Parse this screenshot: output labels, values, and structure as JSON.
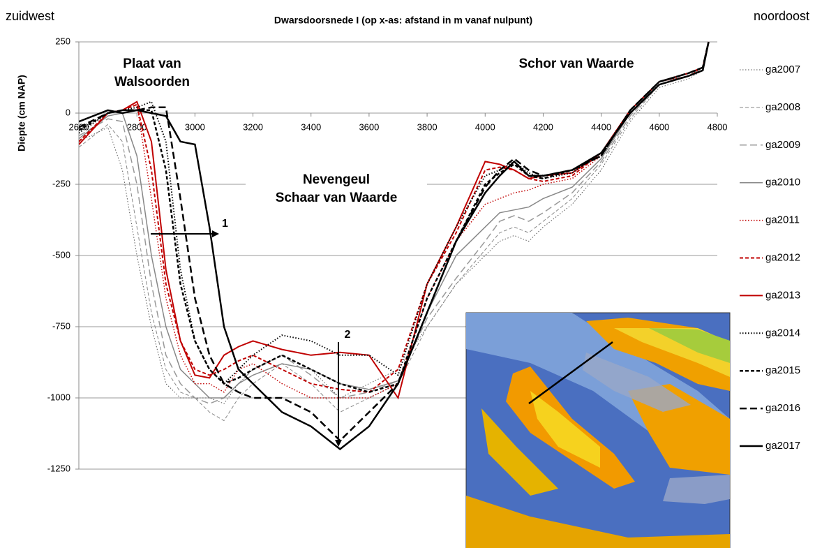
{
  "chart_data": {
    "type": "line",
    "title": "Dwarsdoorsnede I (op x-as: afstand in m vanaf nulpunt)",
    "left_label": "zuidwest",
    "right_label": "noordoost",
    "y_label": "Diepte (cm NAP)",
    "annotations": [
      [
        "Plaat van",
        "Walsoorden"
      ],
      [
        "Schor van Waarde"
      ],
      [
        "Nevengeul",
        "Schaar van Waarde"
      ],
      [
        "1"
      ],
      [
        "2"
      ]
    ],
    "x": [
      2600,
      2700,
      2750,
      2800,
      2850,
      2900,
      2950,
      3000,
      3050,
      3100,
      3150,
      3200,
      3300,
      3400,
      3500,
      3600,
      3700,
      3800,
      3900,
      4000,
      4050,
      4100,
      4150,
      4200,
      4300,
      4400,
      4500,
      4600,
      4700,
      4750,
      4770
    ],
    "xlim": [
      2600,
      4800
    ],
    "xticks": [
      2600,
      2800,
      3000,
      3200,
      3400,
      3600,
      3800,
      4000,
      4200,
      4400,
      4600,
      4800
    ],
    "ylim": [
      -1250,
      250
    ],
    "yticks": [
      250,
      0,
      -250,
      -500,
      -750,
      -1000,
      -1250
    ],
    "grid": true,
    "series": [
      {
        "name": "ga2007",
        "color": "#555555",
        "style": "dotted",
        "width": 1,
        "values": [
          -100,
          -50,
          -200,
          -500,
          -750,
          -950,
          -1000,
          -1000,
          -1000,
          -1020,
          -950,
          -900,
          -850,
          -900,
          -1000,
          -950,
          -900,
          -750,
          -600,
          -500,
          -450,
          -430,
          -450,
          -400,
          -320,
          -200,
          -30,
          90,
          120,
          150,
          250
        ]
      },
      {
        "name": "ga2008",
        "color": "#888888",
        "style": "dashed",
        "width": 1,
        "values": [
          -120,
          -40,
          -100,
          -400,
          -700,
          -900,
          -980,
          -1000,
          -1050,
          -1080,
          -1000,
          -950,
          -880,
          -950,
          -1050,
          -1000,
          -950,
          -750,
          -600,
          -480,
          -420,
          -400,
          -420,
          -380,
          -300,
          -180,
          -20,
          100,
          130,
          160,
          250
        ]
      },
      {
        "name": "ga2009",
        "color": "#999999",
        "style": "longdash",
        "width": 1.5,
        "values": [
          -80,
          -20,
          -30,
          -250,
          -600,
          -850,
          -950,
          -1000,
          -1020,
          -1000,
          -950,
          -900,
          -850,
          -920,
          -1000,
          -980,
          -940,
          -720,
          -580,
          -450,
          -380,
          -360,
          -380,
          -350,
          -280,
          -170,
          -10,
          100,
          130,
          160,
          250
        ]
      },
      {
        "name": "ga2010",
        "color": "#888888",
        "style": "solid",
        "width": 1.5,
        "values": [
          -90,
          -10,
          0,
          -150,
          -500,
          -750,
          -900,
          -950,
          -1000,
          -1000,
          -950,
          -920,
          -880,
          -900,
          -950,
          -970,
          -940,
          -700,
          -500,
          -400,
          -350,
          -340,
          -330,
          -300,
          -260,
          -160,
          0,
          110,
          130,
          160,
          250
        ]
      },
      {
        "name": "ga2011",
        "color": "#c00000",
        "style": "dotted",
        "width": 1.5,
        "values": [
          -100,
          0,
          10,
          30,
          -300,
          -650,
          -850,
          -950,
          -950,
          -980,
          -900,
          -880,
          -950,
          -1000,
          -1000,
          -1000,
          -950,
          -650,
          -450,
          -320,
          -300,
          -280,
          -270,
          -250,
          -230,
          -150,
          10,
          110,
          130,
          160,
          250
        ]
      },
      {
        "name": "ga2012",
        "color": "#c00000",
        "style": "dashed",
        "width": 2,
        "values": [
          -100,
          0,
          10,
          30,
          -200,
          -600,
          -800,
          -900,
          -920,
          -900,
          -870,
          -850,
          -900,
          -950,
          -970,
          -980,
          -900,
          -600,
          -420,
          -200,
          -190,
          -200,
          -230,
          -240,
          -220,
          -140,
          10,
          110,
          140,
          160,
          250
        ]
      },
      {
        "name": "ga2013",
        "color": "#c00000",
        "style": "solid",
        "width": 2,
        "values": [
          -110,
          0,
          10,
          40,
          -100,
          -550,
          -800,
          -920,
          -930,
          -850,
          -820,
          -800,
          -830,
          -850,
          -840,
          -850,
          -1000,
          -600,
          -400,
          -170,
          -180,
          -200,
          -230,
          -220,
          -210,
          -140,
          10,
          110,
          140,
          160,
          250
        ]
      },
      {
        "name": "ga2014",
        "color": "#000000",
        "style": "dotted",
        "width": 2,
        "values": [
          -70,
          0,
          10,
          20,
          40,
          -100,
          -550,
          -800,
          -900,
          -950,
          -900,
          -850,
          -780,
          -800,
          -850,
          -850,
          -920,
          -600,
          -400,
          -220,
          -200,
          -170,
          -210,
          -230,
          -210,
          -140,
          10,
          110,
          140,
          160,
          250
        ]
      },
      {
        "name": "ga2015",
        "color": "#000000",
        "style": "dashed",
        "width": 2.5,
        "values": [
          -60,
          0,
          10,
          10,
          10,
          -200,
          -600,
          -800,
          -900,
          -950,
          -930,
          -900,
          -850,
          -900,
          -950,
          -980,
          -950,
          -650,
          -450,
          -250,
          -210,
          -180,
          -220,
          -230,
          -200,
          -150,
          10,
          110,
          140,
          160,
          250
        ]
      },
      {
        "name": "ga2016",
        "color": "#000000",
        "style": "longdash",
        "width": 2.5,
        "values": [
          -50,
          0,
          10,
          10,
          20,
          20,
          -300,
          -650,
          -850,
          -950,
          -980,
          -1000,
          -1000,
          -1050,
          -1150,
          -1050,
          -950,
          -700,
          -450,
          -260,
          -200,
          -160,
          -200,
          -220,
          -200,
          -150,
          10,
          110,
          140,
          160,
          250
        ]
      },
      {
        "name": "ga2017",
        "color": "#000000",
        "style": "solid",
        "width": 2.5,
        "values": [
          -30,
          10,
          0,
          10,
          0,
          -10,
          -100,
          -110,
          -400,
          -750,
          -900,
          -950,
          -1050,
          -1100,
          -1180,
          -1100,
          -950,
          -700,
          -450,
          -280,
          -220,
          -170,
          -220,
          -220,
          -200,
          -140,
          0,
          100,
          130,
          150,
          250
        ]
      }
    ]
  }
}
